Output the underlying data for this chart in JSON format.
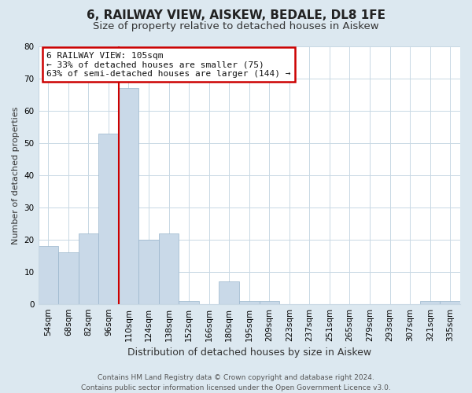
{
  "title": "6, RAILWAY VIEW, AISKEW, BEDALE, DL8 1FE",
  "subtitle": "Size of property relative to detached houses in Aiskew",
  "xlabel": "Distribution of detached houses by size in Aiskew",
  "ylabel": "Number of detached properties",
  "footer_line1": "Contains HM Land Registry data © Crown copyright and database right 2024.",
  "footer_line2": "Contains public sector information licensed under the Open Government Licence v3.0.",
  "bar_labels": [
    "54sqm",
    "68sqm",
    "82sqm",
    "96sqm",
    "110sqm",
    "124sqm",
    "138sqm",
    "152sqm",
    "166sqm",
    "180sqm",
    "195sqm",
    "209sqm",
    "223sqm",
    "237sqm",
    "251sqm",
    "265sqm",
    "279sqm",
    "293sqm",
    "307sqm",
    "321sqm",
    "335sqm"
  ],
  "bar_values": [
    18,
    16,
    22,
    53,
    67,
    20,
    22,
    1,
    0,
    7,
    1,
    1,
    0,
    0,
    0,
    0,
    0,
    0,
    0,
    1,
    1
  ],
  "bar_color": "#c9d9e8",
  "bar_edge_color": "#99b5cc",
  "vline_color": "#cc0000",
  "annotation_line1": "6 RAILWAY VIEW: 105sqm",
  "annotation_line2": "← 33% of detached houses are smaller (75)",
  "annotation_line3": "63% of semi-detached houses are larger (144) →",
  "annotation_box_edge_color": "#cc0000",
  "annotation_box_bg": "#ffffff",
  "ylim": [
    0,
    80
  ],
  "yticks": [
    0,
    10,
    20,
    30,
    40,
    50,
    60,
    70,
    80
  ],
  "bg_color": "#dce8f0",
  "plot_bg_color": "#ffffff",
  "title_fontsize": 11,
  "subtitle_fontsize": 9.5,
  "xlabel_fontsize": 9,
  "ylabel_fontsize": 8,
  "tick_fontsize": 7.5,
  "annotation_fontsize": 8,
  "footer_fontsize": 6.5,
  "grid_color": "#c8d8e4"
}
